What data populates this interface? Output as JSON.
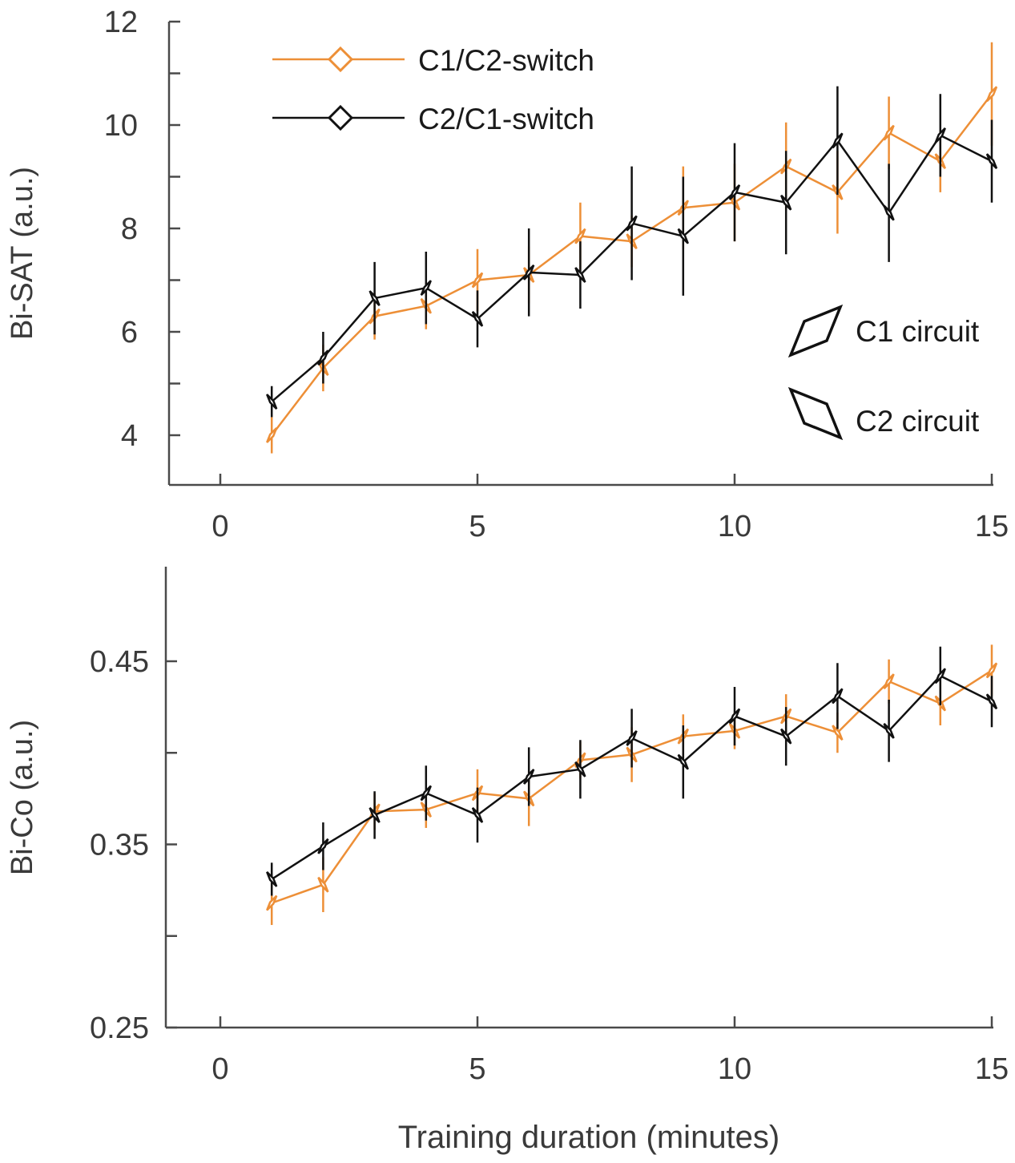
{
  "colors": {
    "orange": "#ED8F37",
    "black": "#111111",
    "axis": "#4a4a4a"
  },
  "legend": {
    "series_labels": [
      "C1/C2-switch",
      "C2/C1-switch"
    ],
    "marker_labels": [
      "C1 circuit",
      "C2 circuit"
    ]
  },
  "xlabel": "Training duration (minutes)",
  "chart_data": [
    {
      "type": "line",
      "ylabel": "Bi-SAT (a.u.)",
      "xlim": [
        -1,
        15
      ],
      "ylim": [
        3,
        12
      ],
      "xticks": [
        0,
        5,
        10,
        15
      ],
      "yticks_labeled": [
        4,
        6,
        8,
        10,
        12
      ],
      "yticks_minor": [
        5,
        7,
        9,
        11
      ],
      "x": [
        1,
        2,
        3,
        4,
        5,
        6,
        7,
        8,
        9,
        10,
        11,
        12,
        13,
        14,
        15
      ],
      "series": [
        {
          "name": "C1/C2-switch",
          "color": "#ED8F37",
          "values": [
            4.0,
            5.3,
            6.3,
            6.5,
            7.0,
            7.1,
            7.85,
            7.75,
            8.4,
            8.5,
            9.2,
            8.7,
            9.85,
            9.3,
            10.6
          ],
          "errors": [
            0.35,
            0.45,
            0.45,
            0.45,
            0.6,
            0.55,
            0.65,
            0.5,
            0.8,
            0.75,
            0.85,
            0.8,
            0.7,
            0.6,
            1.0
          ],
          "circuits": [
            "C1",
            "C2",
            "C1",
            "C2",
            "C1",
            "C2",
            "C1",
            "C2",
            "C1",
            "C2",
            "C1",
            "C2",
            "C1",
            "C2",
            "C1"
          ]
        },
        {
          "name": "C2/C1-switch",
          "color": "#111111",
          "values": [
            4.65,
            5.5,
            6.65,
            6.85,
            6.25,
            7.15,
            7.1,
            8.1,
            7.85,
            8.7,
            8.5,
            9.7,
            8.3,
            9.8,
            9.3
          ],
          "errors": [
            0.3,
            0.5,
            0.7,
            0.7,
            0.55,
            0.85,
            0.65,
            1.1,
            1.15,
            0.95,
            1.0,
            1.05,
            0.95,
            0.8,
            0.8
          ],
          "circuits": [
            "C2",
            "C1",
            "C2",
            "C1",
            "C2",
            "C1",
            "C2",
            "C1",
            "C2",
            "C1",
            "C2",
            "C1",
            "C2",
            "C1",
            "C2"
          ]
        }
      ]
    },
    {
      "type": "line",
      "ylabel": "Bi-Co (a.u.)",
      "xlim": [
        -1,
        15
      ],
      "ylim": [
        0.25,
        0.49
      ],
      "xticks": [
        0,
        5,
        10,
        15
      ],
      "yticks_labeled": [
        "0.25",
        "0.35",
        "0.45"
      ],
      "yticks_minor": [
        0.3,
        0.4
      ],
      "x": [
        1,
        2,
        3,
        4,
        5,
        6,
        7,
        8,
        9,
        10,
        11,
        12,
        13,
        14,
        15
      ],
      "series": [
        {
          "name": "C1/C2-switch",
          "color": "#ED8F37",
          "values": [
            0.318,
            0.328,
            0.368,
            0.369,
            0.378,
            0.375,
            0.396,
            0.399,
            0.409,
            0.412,
            0.42,
            0.411,
            0.439,
            0.427,
            0.445
          ],
          "errors": [
            0.012,
            0.015,
            0.01,
            0.01,
            0.013,
            0.015,
            0.01,
            0.015,
            0.012,
            0.01,
            0.012,
            0.011,
            0.012,
            0.012,
            0.014
          ],
          "circuits": [
            "C1",
            "C2",
            "C1",
            "C2",
            "C1",
            "C2",
            "C1",
            "C2",
            "C1",
            "C2",
            "C1",
            "C2",
            "C1",
            "C2",
            "C1"
          ]
        },
        {
          "name": "C2/C1-switch",
          "color": "#111111",
          "values": [
            0.331,
            0.349,
            0.366,
            0.378,
            0.366,
            0.387,
            0.391,
            0.408,
            0.395,
            0.42,
            0.409,
            0.431,
            0.412,
            0.442,
            0.428
          ],
          "errors": [
            0.009,
            0.013,
            0.013,
            0.015,
            0.015,
            0.016,
            0.016,
            0.016,
            0.02,
            0.016,
            0.016,
            0.018,
            0.017,
            0.016,
            0.014
          ],
          "circuits": [
            "C2",
            "C1",
            "C2",
            "C1",
            "C2",
            "C1",
            "C2",
            "C1",
            "C2",
            "C1",
            "C2",
            "C1",
            "C2",
            "C1",
            "C2"
          ]
        }
      ]
    }
  ]
}
